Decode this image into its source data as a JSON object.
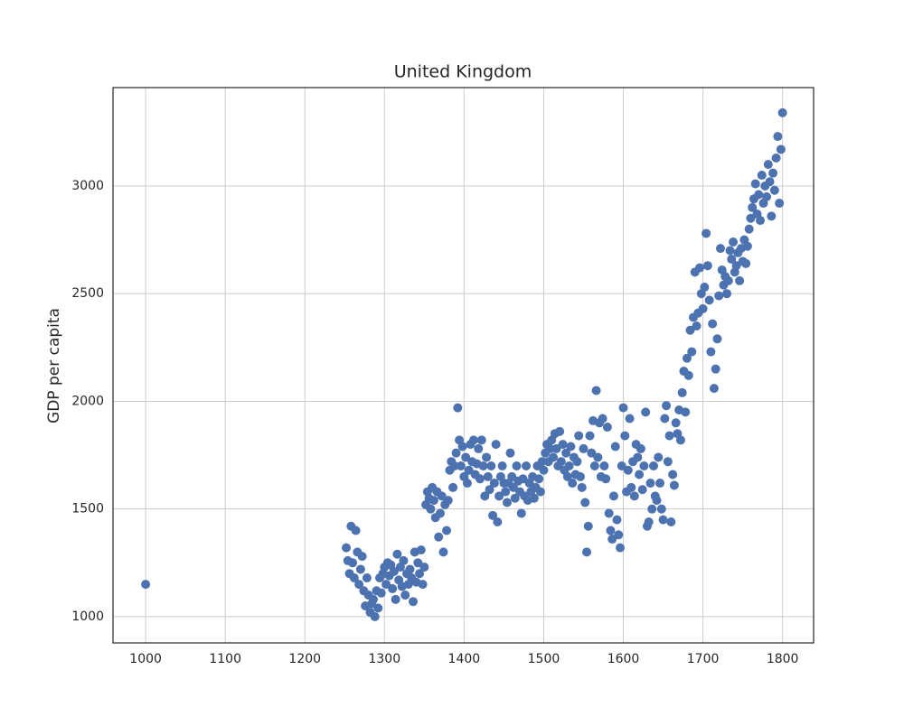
{
  "chart_data": {
    "type": "scatter",
    "title": "United Kingdom",
    "y_label": "GDP per capita",
    "color": "#4c72b0",
    "grid": true,
    "xlim": [
      959,
      1839
    ],
    "ylim": [
      878,
      3457
    ],
    "xticks": [
      1000,
      1100,
      1200,
      1300,
      1400,
      1500,
      1600,
      1700,
      1800
    ],
    "yticks": [
      1000,
      1500,
      2000,
      2500,
      3000
    ],
    "x": [
      1000,
      1252,
      1254,
      1256,
      1258,
      1260,
      1262,
      1264,
      1266,
      1268,
      1270,
      1272,
      1274,
      1276,
      1278,
      1280,
      1282,
      1284,
      1286,
      1288,
      1290,
      1292,
      1294,
      1296,
      1298,
      1300,
      1302,
      1304,
      1306,
      1308,
      1310,
      1312,
      1314,
      1316,
      1318,
      1320,
      1322,
      1324,
      1326,
      1328,
      1330,
      1332,
      1334,
      1336,
      1338,
      1340,
      1342,
      1344,
      1346,
      1348,
      1350,
      1352,
      1354,
      1356,
      1358,
      1360,
      1362,
      1364,
      1366,
      1368,
      1370,
      1372,
      1374,
      1376,
      1378,
      1380,
      1382,
      1384,
      1386,
      1388,
      1390,
      1392,
      1394,
      1396,
      1398,
      1400,
      1402,
      1404,
      1406,
      1408,
      1410,
      1412,
      1414,
      1416,
      1418,
      1420,
      1422,
      1424,
      1426,
      1428,
      1430,
      1432,
      1434,
      1436,
      1438,
      1440,
      1442,
      1444,
      1446,
      1448,
      1450,
      1452,
      1454,
      1456,
      1458,
      1460,
      1462,
      1464,
      1466,
      1468,
      1470,
      1472,
      1474,
      1476,
      1478,
      1480,
      1482,
      1484,
      1486,
      1488,
      1490,
      1492,
      1494,
      1496,
      1498,
      1500,
      1502,
      1504,
      1506,
      1508,
      1510,
      1512,
      1514,
      1516,
      1518,
      1520,
      1522,
      1524,
      1526,
      1528,
      1530,
      1532,
      1534,
      1536,
      1538,
      1540,
      1542,
      1544,
      1546,
      1548,
      1550,
      1552,
      1554,
      1556,
      1558,
      1560,
      1562,
      1564,
      1566,
      1568,
      1570,
      1572,
      1574,
      1576,
      1578,
      1580,
      1582,
      1584,
      1586,
      1588,
      1590,
      1592,
      1594,
      1596,
      1598,
      1600,
      1602,
      1604,
      1606,
      1608,
      1610,
      1612,
      1614,
      1616,
      1618,
      1620,
      1622,
      1624,
      1626,
      1628,
      1630,
      1632,
      1634,
      1636,
      1638,
      1640,
      1642,
      1644,
      1646,
      1648,
      1650,
      1652,
      1654,
      1656,
      1658,
      1660,
      1662,
      1664,
      1666,
      1668,
      1670,
      1672,
      1674,
      1676,
      1678,
      1680,
      1682,
      1684,
      1686,
      1688,
      1690,
      1692,
      1694,
      1696,
      1698,
      1700,
      1702,
      1704,
      1706,
      1708,
      1710,
      1712,
      1714,
      1716,
      1718,
      1720,
      1722,
      1724,
      1726,
      1728,
      1730,
      1732,
      1734,
      1736,
      1738,
      1740,
      1742,
      1744,
      1746,
      1748,
      1750,
      1752,
      1754,
      1756,
      1758,
      1760,
      1762,
      1764,
      1766,
      1768,
      1770,
      1772,
      1774,
      1776,
      1778,
      1780,
      1782,
      1784,
      1786,
      1788,
      1790,
      1792,
      1794,
      1796,
      1798,
      1800
    ],
    "values": [
      1150,
      1320,
      1260,
      1200,
      1420,
      1250,
      1180,
      1400,
      1300,
      1150,
      1220,
      1280,
      1120,
      1050,
      1180,
      1100,
      1020,
      1060,
      1080,
      1000,
      1120,
      1040,
      1180,
      1110,
      1200,
      1230,
      1150,
      1250,
      1190,
      1240,
      1130,
      1210,
      1080,
      1290,
      1170,
      1230,
      1140,
      1260,
      1100,
      1200,
      1150,
      1220,
      1180,
      1070,
      1300,
      1160,
      1250,
      1200,
      1310,
      1150,
      1230,
      1520,
      1580,
      1550,
      1500,
      1600,
      1540,
      1460,
      1580,
      1370,
      1480,
      1560,
      1300,
      1520,
      1400,
      1540,
      1680,
      1720,
      1600,
      1700,
      1760,
      1970,
      1820,
      1700,
      1790,
      1650,
      1740,
      1620,
      1680,
      1800,
      1720,
      1820,
      1660,
      1710,
      1780,
      1640,
      1820,
      1700,
      1560,
      1740,
      1650,
      1590,
      1700,
      1470,
      1620,
      1800,
      1440,
      1560,
      1650,
      1700,
      1620,
      1580,
      1530,
      1620,
      1760,
      1650,
      1600,
      1550,
      1700,
      1630,
      1580,
      1480,
      1640,
      1560,
      1700,
      1540,
      1620,
      1580,
      1650,
      1550,
      1600,
      1700,
      1640,
      1580,
      1720,
      1680,
      1760,
      1800,
      1720,
      1780,
      1820,
      1740,
      1850,
      1780,
      1700,
      1860,
      1720,
      1800,
      1680,
      1760,
      1650,
      1700,
      1790,
      1620,
      1740,
      1660,
      1720,
      1840,
      1650,
      1600,
      1780,
      1530,
      1300,
      1420,
      1840,
      1760,
      1910,
      1700,
      2050,
      1740,
      1900,
      1650,
      1920,
      1700,
      1640,
      1880,
      1480,
      1400,
      1360,
      1560,
      1790,
      1450,
      1380,
      1320,
      1700,
      1970,
      1840,
      1580,
      1680,
      1920,
      1600,
      1720,
      1560,
      1800,
      1740,
      1660,
      1780,
      1590,
      1700,
      1950,
      1420,
      1440,
      1620,
      1500,
      1700,
      1560,
      1540,
      1740,
      1620,
      1500,
      1450,
      1920,
      1980,
      1720,
      1840,
      1440,
      1660,
      1610,
      1900,
      1850,
      1960,
      1820,
      2040,
      2140,
      1950,
      2200,
      2120,
      2330,
      2230,
      2390,
      2600,
      2350,
      2410,
      2620,
      2500,
      2430,
      2530,
      2780,
      2630,
      2470,
      2230,
      2360,
      2060,
      2150,
      2290,
      2490,
      2710,
      2610,
      2540,
      2580,
      2500,
      2560,
      2700,
      2660,
      2740,
      2600,
      2630,
      2690,
      2560,
      2710,
      2650,
      2750,
      2640,
      2720,
      2800,
      2850,
      2900,
      2940,
      3010,
      2870,
      2960,
      2840,
      3050,
      2920,
      3000,
      2950,
      3100,
      3020,
      2860,
      3060,
      2980,
      3130,
      3230,
      2920,
      3170,
      3340
    ]
  }
}
